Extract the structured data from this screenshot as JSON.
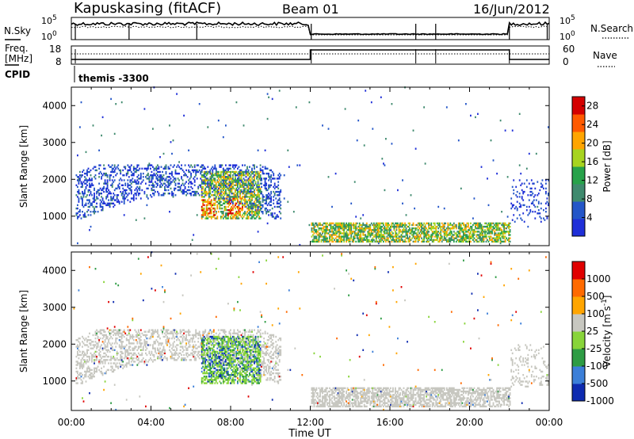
{
  "header": {
    "station": "Kapuskasing (fitACF)",
    "beam": "Beam 01",
    "date": "16/Jun/2012"
  },
  "noise": {
    "left_label": "N.Sky",
    "right_label": "N.Search",
    "left_ticks": [
      "10^5",
      "10^0"
    ],
    "right_ticks": [
      "10^5",
      "10^0"
    ]
  },
  "freq": {
    "left_label_line1": "Freq.",
    "left_label_line2": "[MHz]",
    "left_ticks": [
      "18",
      "8"
    ],
    "right_label": "Nave",
    "right_ticks": [
      "60",
      "0"
    ]
  },
  "cpid": {
    "label": "CPID",
    "value": "themis -3300"
  },
  "colors": {
    "power": [
      "#1f2fd8",
      "#2456c8",
      "#3f8a6e",
      "#27a24a",
      "#a7d41f",
      "#ffa500",
      "#ff5a00",
      "#d40000"
    ],
    "velocity": [
      "#0e2bb0",
      "#3c7fd8",
      "#2e9c44",
      "#88d43a",
      "#c7c7c0",
      "#ffa500",
      "#ff6a00",
      "#e00000"
    ]
  },
  "chart_data": [
    {
      "type": "heatmap",
      "name": "power",
      "ylabel": "Slant Range [km]",
      "x_ticks": [
        "00:00",
        "04:00",
        "08:00",
        "12:00",
        "16:00",
        "20:00",
        "00:00"
      ],
      "y_ticks": [
        1000,
        2000,
        3000,
        4000
      ],
      "ylim": [
        200,
        4500
      ],
      "colorbar": {
        "label": "Power [dB]",
        "ticks": [
          4,
          8,
          12,
          16,
          20,
          24,
          28
        ],
        "range": [
          0,
          30
        ]
      },
      "echo_regions": [
        {
          "t_start": 0.2,
          "t_end": 10.5,
          "r_min": 500,
          "r_max": 2400,
          "dominant": "low power, patchy"
        },
        {
          "t_start": 6.5,
          "t_end": 9.5,
          "r_min": 900,
          "r_max": 2200,
          "dominant": "up to ~28 dB"
        },
        {
          "t_start": 12.0,
          "t_end": 22.0,
          "r_min": 250,
          "r_max": 800,
          "dominant": "~12-20 dB"
        }
      ]
    },
    {
      "type": "heatmap",
      "name": "velocity",
      "ylabel": "Slant Range [km]",
      "xlabel": "Time UT",
      "x_ticks": [
        "00:00",
        "04:00",
        "08:00",
        "12:00",
        "16:00",
        "20:00",
        "00:00"
      ],
      "y_ticks": [
        1000,
        2000,
        3000,
        4000
      ],
      "ylim": [
        200,
        4500
      ],
      "colorbar": {
        "label": "Velocity [m s^-1]",
        "ticks": [
          1000,
          500,
          100,
          25,
          -25,
          -100,
          -500,
          -1000
        ]
      },
      "echo_regions": [
        {
          "t_start": 0.2,
          "t_end": 10.5,
          "r_min": 500,
          "r_max": 2400,
          "dominant": "ground scatter (grey)"
        },
        {
          "t_start": 6.5,
          "t_end": 9.5,
          "r_min": 900,
          "r_max": 2200,
          "dominant": "+100 to +500 m/s"
        },
        {
          "t_start": 12.0,
          "t_end": 22.0,
          "r_min": 250,
          "r_max": 800,
          "dominant": "ground scatter (grey)"
        }
      ]
    }
  ]
}
